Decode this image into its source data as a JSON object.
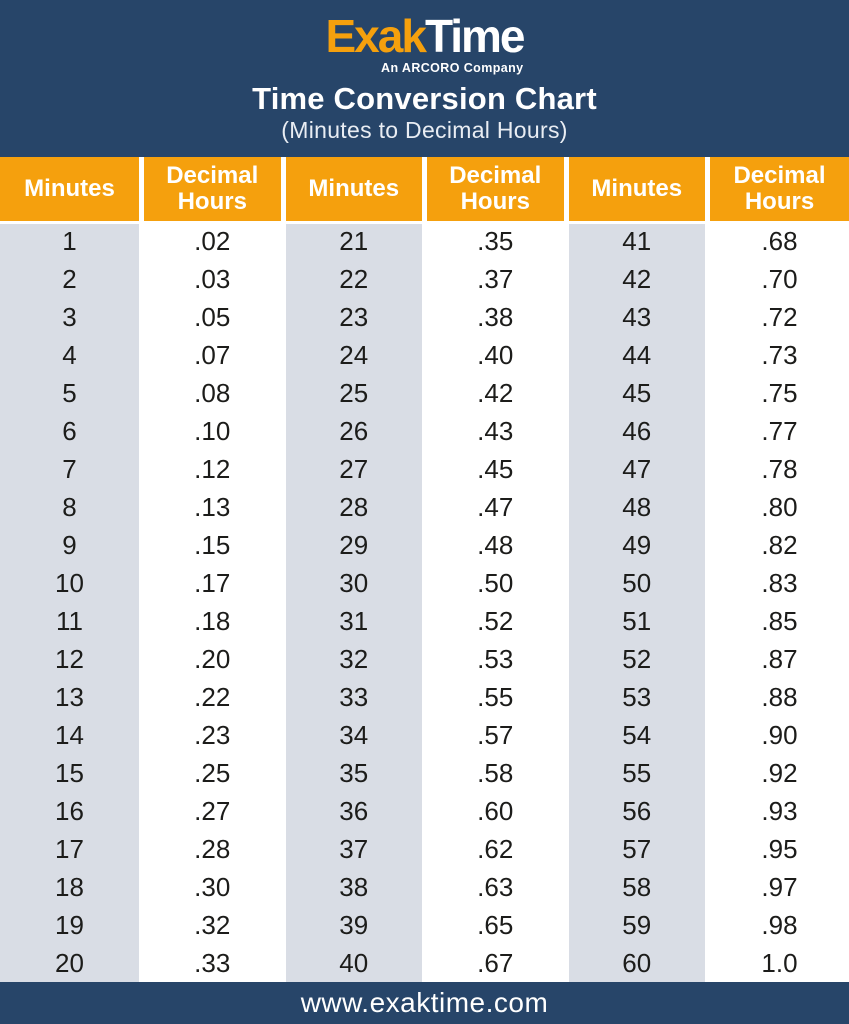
{
  "header": {
    "logo": {
      "exak": "Exak",
      "time": "Time",
      "tagline": "An ARCORO Company"
    },
    "title": "Time Conversion Chart",
    "subtitle": "(Minutes to Decimal Hours)"
  },
  "chart_data": {
    "type": "table",
    "title": "Time Conversion Chart",
    "subtitle": "(Minutes to Decimal Hours)",
    "columns": [
      "Minutes",
      "Decimal Hours",
      "Minutes",
      "Decimal Hours",
      "Minutes",
      "Decimal Hours"
    ],
    "column_types": [
      "minutes",
      "decimal",
      "minutes",
      "decimal",
      "minutes",
      "decimal"
    ],
    "rows": [
      [
        "1",
        ".02",
        "21",
        ".35",
        "41",
        ".68"
      ],
      [
        "2",
        ".03",
        "22",
        ".37",
        "42",
        ".70"
      ],
      [
        "3",
        ".05",
        "23",
        ".38",
        "43",
        ".72"
      ],
      [
        "4",
        ".07",
        "24",
        ".40",
        "44",
        ".73"
      ],
      [
        "5",
        ".08",
        "25",
        ".42",
        "45",
        ".75"
      ],
      [
        "6",
        ".10",
        "26",
        ".43",
        "46",
        ".77"
      ],
      [
        "7",
        ".12",
        "27",
        ".45",
        "47",
        ".78"
      ],
      [
        "8",
        ".13",
        "28",
        ".47",
        "48",
        ".80"
      ],
      [
        "9",
        ".15",
        "29",
        ".48",
        "49",
        ".82"
      ],
      [
        "10",
        ".17",
        "30",
        ".50",
        "50",
        ".83"
      ],
      [
        "11",
        ".18",
        "31",
        ".52",
        "51",
        ".85"
      ],
      [
        "12",
        ".20",
        "32",
        ".53",
        "52",
        ".87"
      ],
      [
        "13",
        ".22",
        "33",
        ".55",
        "53",
        ".88"
      ],
      [
        "14",
        ".23",
        "34",
        ".57",
        "54",
        ".90"
      ],
      [
        "15",
        ".25",
        "35",
        ".58",
        "55",
        ".92"
      ],
      [
        "16",
        ".27",
        "36",
        ".60",
        "56",
        ".93"
      ],
      [
        "17",
        ".28",
        "37",
        ".62",
        "57",
        ".95"
      ],
      [
        "18",
        ".30",
        "38",
        ".63",
        "58",
        ".97"
      ],
      [
        "19",
        ".32",
        "39",
        ".65",
        "59",
        ".98"
      ],
      [
        "20",
        ".33",
        "40",
        ".67",
        "60",
        "1.0"
      ]
    ]
  },
  "footer": {
    "url": "www.exaktime.com"
  },
  "colors": {
    "navy": "#274569",
    "orange": "#F5A00D",
    "row_gray": "#D9DDE5",
    "row_white": "#FFFFFF",
    "cell_text": "#1C1C1A"
  }
}
